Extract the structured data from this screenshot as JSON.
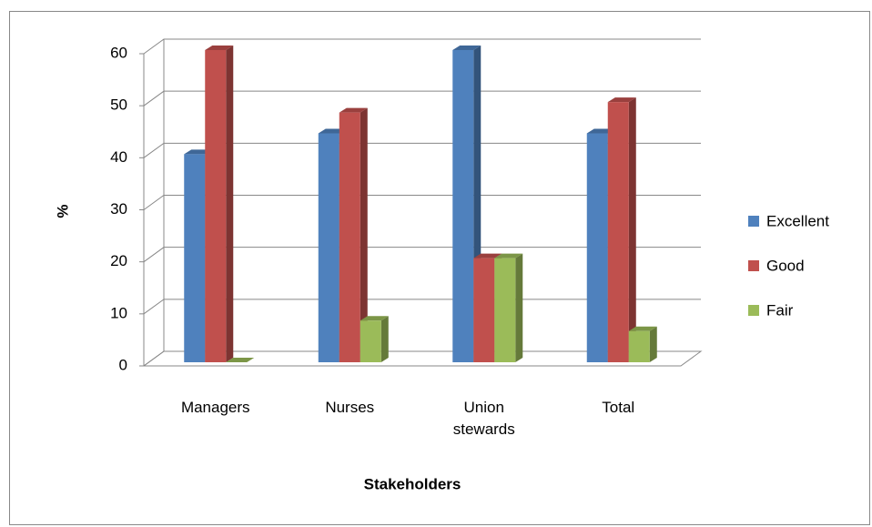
{
  "chart_data": {
    "type": "bar3d",
    "categories": [
      "Managers",
      "Nurses",
      "Union stewards",
      "Total"
    ],
    "series": [
      {
        "name": "Excellent",
        "color": "#4f81bd",
        "values": [
          40,
          44,
          60,
          44
        ]
      },
      {
        "name": "Good",
        "color": "#c0504d",
        "values": [
          60,
          48,
          20,
          50
        ]
      },
      {
        "name": "Fair",
        "color": "#9bbb59",
        "values": [
          0,
          8,
          20,
          6
        ]
      }
    ],
    "ylim": [
      0,
      60
    ],
    "yticks": [
      0,
      10,
      20,
      30,
      40,
      50,
      60
    ],
    "y_label": "%",
    "x_label": "Stakeholders",
    "grid": true,
    "legend": "right"
  }
}
